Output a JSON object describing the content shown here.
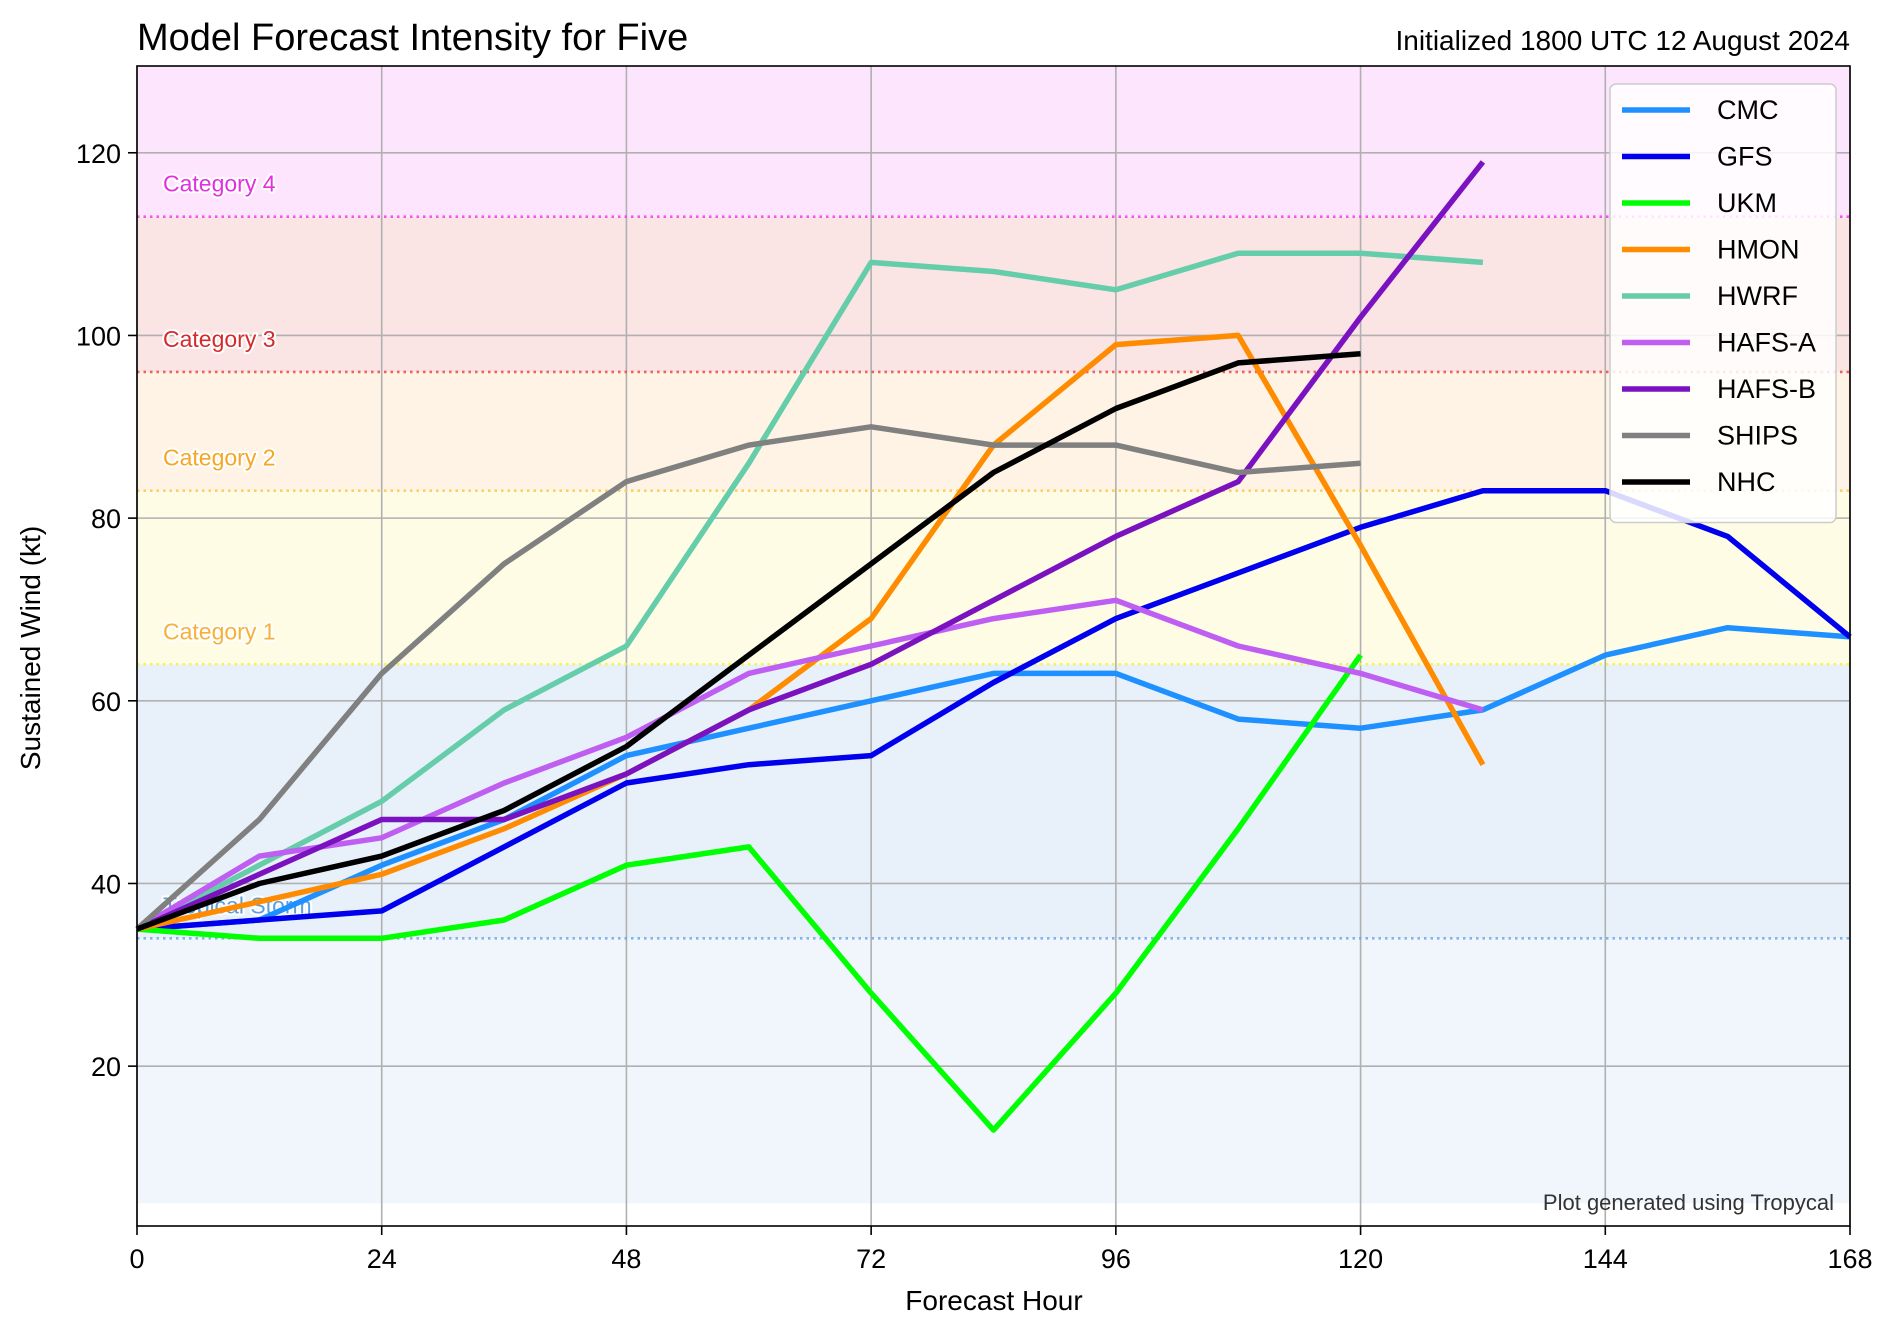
{
  "chart_data": {
    "type": "line",
    "title": "Model Forecast Intensity for Five",
    "subtitle": "Initialized 1800 UTC 12 August 2024",
    "xlabel": "Forecast Hour",
    "ylabel": "Sustained Wind (kt)",
    "xlim": [
      0,
      168
    ],
    "ylim": [
      2.5,
      129.5
    ],
    "xticks": [
      0,
      24,
      48,
      72,
      96,
      120,
      144,
      168
    ],
    "yticks": [
      20,
      40,
      60,
      80,
      100,
      120
    ],
    "grid": true,
    "legend_position": "top-right",
    "credit": "Plot generated using Tropycal",
    "categories": [
      {
        "name": "Tropical Storm",
        "threshold": 34,
        "upper": 64,
        "fill": "#e8f1fa",
        "line": "#6fa8e6",
        "text_color": "#5a9ee0"
      },
      {
        "name": "Category 1",
        "threshold": 64,
        "upper": 83,
        "fill": "#fffce6",
        "line": "#f3f340",
        "text_color": "#f5b13a"
      },
      {
        "name": "Category 2",
        "threshold": 83,
        "upper": 96,
        "fill": "#fef3e4",
        "line": "#f7c94e",
        "text_color": "#f5a623"
      },
      {
        "name": "Category 3",
        "threshold": 96,
        "upper": 113,
        "fill": "#fae4e4",
        "line": "#ec4b4b",
        "text_color": "#d62a2a"
      },
      {
        "name": "Category 4",
        "threshold": 113,
        "upper": 129.5,
        "fill": "#fee5fe",
        "line": "#ec40ec",
        "text_color": "#e030e0"
      }
    ],
    "below_ts_fill": "#f0f6fb",
    "below_ts_floor": 5,
    "series": [
      {
        "name": "CMC",
        "color": "#1e90ff",
        "x": [
          0,
          12,
          24,
          36,
          48,
          60,
          72,
          84,
          96,
          108,
          120,
          132,
          144,
          156,
          168
        ],
        "y": [
          35,
          36,
          42,
          47,
          54,
          57,
          60,
          63,
          63,
          58,
          57,
          59,
          65,
          68,
          67
        ]
      },
      {
        "name": "GFS",
        "color": "#0000ee",
        "x": [
          0,
          12,
          24,
          36,
          48,
          60,
          72,
          84,
          96,
          108,
          120,
          132,
          144,
          156,
          168
        ],
        "y": [
          35,
          36,
          37,
          44,
          51,
          53,
          54,
          62,
          69,
          74,
          79,
          83,
          83,
          78,
          67
        ]
      },
      {
        "name": "UKM",
        "color": "#00ff00",
        "x": [
          0,
          12,
          24,
          36,
          48,
          60,
          72,
          84,
          96,
          108,
          120
        ],
        "y": [
          35,
          34,
          34,
          36,
          42,
          44,
          28,
          13,
          28,
          46,
          65
        ]
      },
      {
        "name": "HMON",
        "color": "#ff8c00",
        "x": [
          0,
          12,
          24,
          36,
          48,
          60,
          72,
          84,
          96,
          108,
          120,
          132
        ],
        "y": [
          35,
          38,
          41,
          46,
          52,
          59,
          69,
          88,
          99,
          100,
          77,
          53
        ]
      },
      {
        "name": "HWRF",
        "color": "#66cdaa",
        "x": [
          0,
          12,
          24,
          36,
          48,
          60,
          72,
          84,
          96,
          108,
          120,
          132
        ],
        "y": [
          35,
          42,
          49,
          59,
          66,
          86,
          108,
          107,
          105,
          109,
          109,
          108
        ]
      },
      {
        "name": "HAFS-A",
        "color": "#bf5ff2",
        "x": [
          0,
          12,
          24,
          36,
          48,
          60,
          72,
          84,
          96,
          108,
          120,
          132
        ],
        "y": [
          35,
          43,
          45,
          51,
          56,
          63,
          66,
          69,
          71,
          66,
          63,
          59
        ]
      },
      {
        "name": "HAFS-B",
        "color": "#7b12c0",
        "x": [
          0,
          12,
          24,
          36,
          48,
          60,
          72,
          84,
          96,
          108,
          120,
          132
        ],
        "y": [
          35,
          41,
          47,
          47,
          52,
          59,
          64,
          71,
          78,
          84,
          102,
          119
        ]
      },
      {
        "name": "SHIPS",
        "color": "#808080",
        "x": [
          0,
          12,
          24,
          36,
          48,
          60,
          72,
          84,
          96,
          108,
          120
        ],
        "y": [
          35,
          47,
          63,
          75,
          84,
          88,
          90,
          88,
          88,
          85,
          86
        ]
      },
      {
        "name": "NHC",
        "color": "#000000",
        "x": [
          0,
          12,
          24,
          36,
          48,
          60,
          72,
          84,
          96,
          108,
          120
        ],
        "y": [
          35,
          40,
          43,
          48,
          55,
          65,
          75,
          85,
          92,
          97,
          98
        ]
      }
    ]
  }
}
